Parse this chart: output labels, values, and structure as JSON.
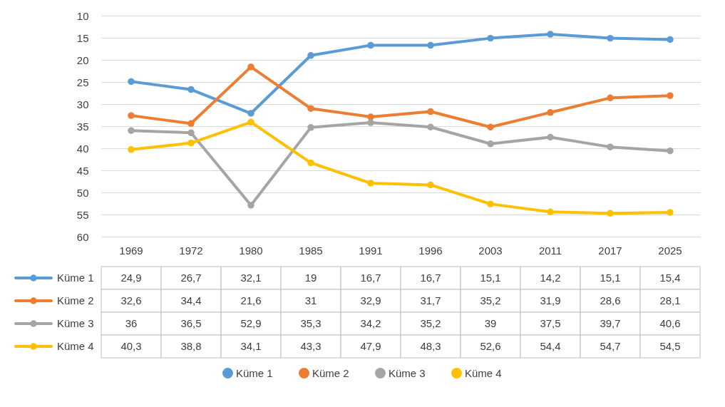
{
  "chart_data": {
    "type": "line",
    "categories": [
      "1969",
      "1972",
      "1980",
      "1985",
      "1991",
      "1996",
      "2003",
      "2011",
      "2017",
      "2025"
    ],
    "series": [
      {
        "name": "Küme 1",
        "color": "#5b9bd5",
        "values": [
          24.9,
          26.7,
          32.1,
          19,
          16.7,
          16.7,
          15.1,
          14.2,
          15.1,
          15.4
        ],
        "value_labels": [
          "24,9",
          "26,7",
          "32,1",
          "19",
          "16,7",
          "16,7",
          "15,1",
          "14,2",
          "15,1",
          "15,4"
        ]
      },
      {
        "name": "Küme 2",
        "color": "#ed7d31",
        "values": [
          32.6,
          34.4,
          21.6,
          31,
          32.9,
          31.7,
          35.2,
          31.9,
          28.6,
          28.1
        ],
        "value_labels": [
          "32,6",
          "34,4",
          "21,6",
          "31",
          "32,9",
          "31,7",
          "35,2",
          "31,9",
          "28,6",
          "28,1"
        ]
      },
      {
        "name": "Küme 3",
        "color": "#a5a5a5",
        "values": [
          36,
          36.5,
          52.9,
          35.3,
          34.2,
          35.2,
          39,
          37.5,
          39.7,
          40.6
        ],
        "value_labels": [
          "36",
          "36,5",
          "52,9",
          "35,3",
          "34,2",
          "35,2",
          "39",
          "37,5",
          "39,7",
          "40,6"
        ]
      },
      {
        "name": "Küme 4",
        "color": "#ffc000",
        "values": [
          40.3,
          38.8,
          34.1,
          43.3,
          47.9,
          48.3,
          52.6,
          54.4,
          54.7,
          54.5
        ],
        "value_labels": [
          "40,3",
          "38,8",
          "34,1",
          "43,3",
          "47,9",
          "48,3",
          "52,6",
          "54,4",
          "54,7",
          "54,5"
        ]
      }
    ],
    "ylim": [
      60,
      10
    ],
    "yticks": [
      10,
      15,
      20,
      25,
      30,
      35,
      40,
      45,
      50,
      55,
      60
    ],
    "grid": "y",
    "marker": "circle",
    "line_style": "solid",
    "legend": "bottom"
  }
}
